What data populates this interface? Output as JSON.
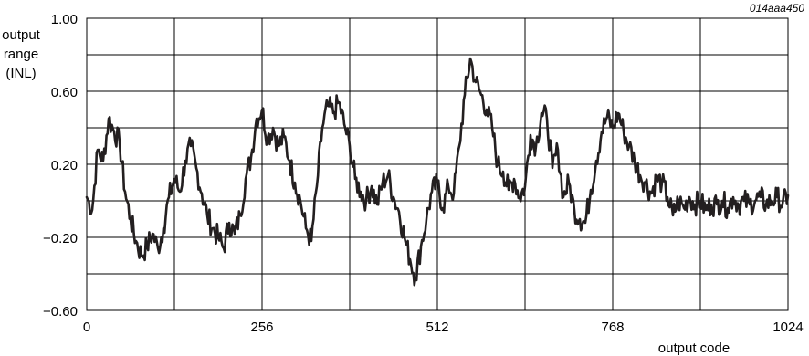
{
  "figure_id": "014aaa450",
  "chart_data": {
    "type": "line",
    "title": "",
    "xlabel": "output code",
    "ylabel": [
      "output",
      "range",
      "(INL)"
    ],
    "xlim": [
      0,
      1024
    ],
    "ylim": [
      -0.6,
      1.0
    ],
    "x_ticks": [
      0,
      256,
      512,
      768,
      1024
    ],
    "x_tick_labels": [
      "0",
      "256",
      "512",
      "768",
      "1024"
    ],
    "x_grid": [
      0,
      128,
      256,
      384,
      512,
      640,
      768,
      896,
      1024
    ],
    "y_ticks": [
      -0.6,
      -0.2,
      0.2,
      0.6,
      1.0
    ],
    "y_tick_labels": [
      "−0.60",
      "−0.20",
      "0.20",
      "0.60",
      "1.00"
    ],
    "y_grid": [
      -0.6,
      -0.4,
      -0.2,
      0.0,
      0.2,
      0.4,
      0.6,
      0.8,
      1.0
    ],
    "grid": true,
    "series": [
      {
        "color": "#231f20",
        "x": [
          0,
          8,
          16,
          24,
          32,
          40,
          48,
          56,
          64,
          72,
          80,
          88,
          96,
          104,
          112,
          120,
          128,
          136,
          144,
          152,
          160,
          168,
          176,
          184,
          192,
          200,
          208,
          216,
          224,
          232,
          240,
          248,
          256,
          264,
          272,
          280,
          288,
          296,
          304,
          312,
          320,
          328,
          336,
          344,
          352,
          360,
          368,
          376,
          384,
          392,
          400,
          408,
          416,
          424,
          432,
          440,
          448,
          456,
          464,
          472,
          480,
          488,
          496,
          504,
          512,
          520,
          528,
          536,
          544,
          552,
          560,
          568,
          576,
          584,
          592,
          600,
          608,
          616,
          624,
          632,
          640,
          648,
          656,
          664,
          672,
          680,
          688,
          696,
          704,
          712,
          720,
          728,
          736,
          744,
          752,
          760,
          768,
          776,
          784,
          792,
          800,
          808,
          816,
          824,
          832,
          840,
          848,
          856,
          864,
          872,
          880,
          888,
          896,
          904,
          912,
          920,
          928,
          936,
          944,
          952,
          960,
          968,
          976,
          984,
          992,
          1000,
          1008,
          1016,
          1024
        ],
        "values": [
          0.02,
          -0.05,
          0.28,
          0.22,
          0.45,
          0.38,
          0.32,
          0.05,
          -0.1,
          -0.22,
          -0.3,
          -0.25,
          -0.18,
          -0.26,
          -0.15,
          0.02,
          0.12,
          0.05,
          0.22,
          0.3,
          0.18,
          0.04,
          -0.08,
          -0.15,
          -0.2,
          -0.26,
          -0.12,
          -0.18,
          -0.08,
          0.12,
          0.24,
          0.45,
          0.5,
          0.34,
          0.4,
          0.3,
          0.35,
          0.22,
          0.1,
          0.0,
          -0.15,
          -0.22,
          0.08,
          0.4,
          0.52,
          0.48,
          0.54,
          0.42,
          0.3,
          0.12,
          0.05,
          0.0,
          0.08,
          -0.02,
          0.1,
          0.14,
          0.02,
          -0.06,
          -0.2,
          -0.32,
          -0.42,
          -0.25,
          -0.1,
          0.05,
          0.1,
          -0.04,
          0.08,
          0.04,
          0.3,
          0.58,
          0.78,
          0.65,
          0.58,
          0.5,
          0.4,
          0.2,
          0.16,
          0.06,
          0.12,
          0.02,
          0.08,
          0.36,
          0.3,
          0.48,
          0.45,
          0.18,
          0.28,
          0.02,
          0.1,
          -0.05,
          -0.1,
          -0.12,
          0.06,
          0.22,
          0.38,
          0.46,
          0.4,
          0.48,
          0.38,
          0.3,
          0.22,
          0.14,
          0.1,
          0.04,
          0.12,
          0.1,
          0.02,
          -0.08,
          0.0,
          -0.04,
          0.02,
          -0.02,
          0.0,
          -0.05,
          -0.02,
          -0.02,
          0.0,
          -0.04,
          0.02,
          -0.02,
          0.0,
          -0.02,
          0.0,
          0.02,
          -0.02,
          0.0,
          0.02,
          -0.02,
          0.03
        ]
      }
    ]
  }
}
